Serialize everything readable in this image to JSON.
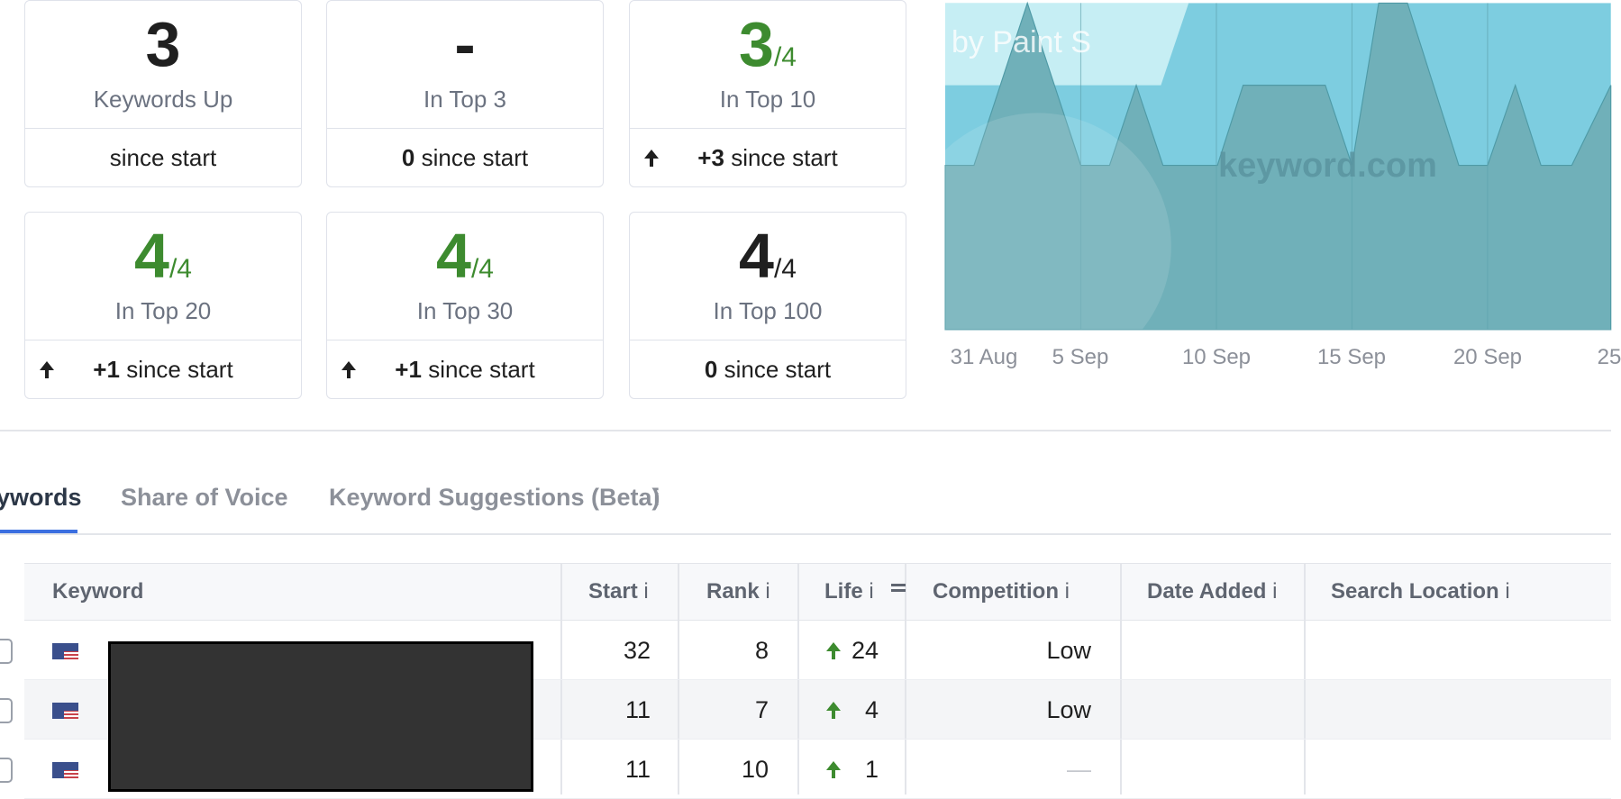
{
  "cards": [
    {
      "value": "3",
      "label": "Keywords Up",
      "since": "since start",
      "color": "#1f1f1f"
    },
    {
      "value": "-",
      "label": "In Top 3",
      "change": "0",
      "since": "since start",
      "color": "#1f1f1f"
    },
    {
      "value": "3",
      "total": "/4",
      "label": "In Top 10",
      "change": "+3",
      "since": "since start",
      "color": "#3d8b2f"
    },
    {
      "value": "4",
      "total": "/4",
      "label": "In Top 20",
      "change": "+1",
      "since": "since start",
      "color": "#3d8b2f"
    },
    {
      "value": "4",
      "total": "/4",
      "label": "In Top 30",
      "change": "+1",
      "since": "since start",
      "color": "#3d8b2f"
    },
    {
      "value": "4",
      "total": "/4",
      "label": "In Top 100",
      "change": "0",
      "since": "since start",
      "color": "#1f1f1f"
    }
  ],
  "chart": {
    "watermark": "by Paint S",
    "brand": "keyword.com",
    "x_labels": [
      "31 Aug",
      "5 Sep",
      "10 Sep",
      "15 Sep",
      "20 Sep",
      "25"
    ]
  },
  "tabs": [
    "ywords",
    "Share of Voice",
    "Keyword Suggestions (Beta)"
  ],
  "tab_info": "i",
  "table": {
    "headers": [
      {
        "text": "Keyword"
      },
      {
        "text": "Start",
        "info": "i"
      },
      {
        "text": "Rank",
        "info": "i"
      },
      {
        "text": "Life",
        "info": "i"
      },
      {
        "text": "Competition",
        "info": "i"
      },
      {
        "text": "Date Added",
        "info": "i"
      },
      {
        "text": "Search Location",
        "info": "i"
      }
    ],
    "rows": [
      [
        "32",
        "8",
        "24",
        "Low"
      ],
      [
        "11",
        "7",
        "4",
        "Low"
      ],
      [
        "11",
        "10",
        "1",
        "—"
      ]
    ]
  }
}
